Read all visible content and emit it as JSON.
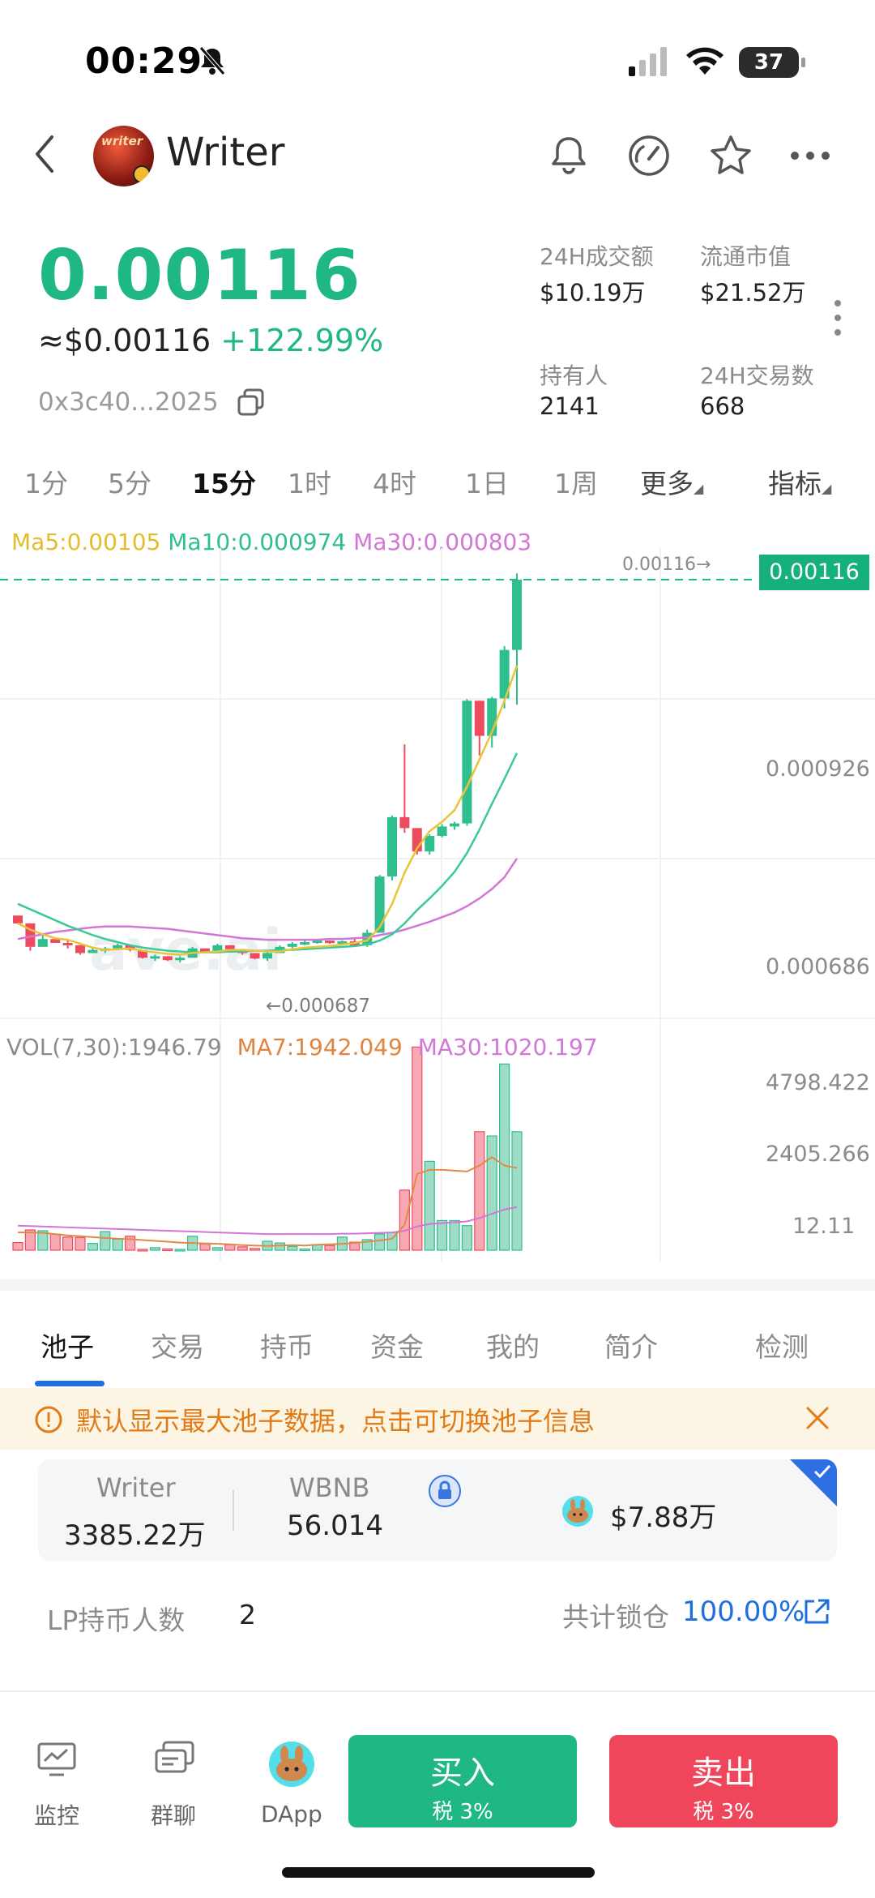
{
  "status": {
    "time": "00:29",
    "battery": "37"
  },
  "header": {
    "title": "Writer",
    "avatar_text": "writer"
  },
  "price": {
    "main": "0.00116",
    "usd": "≈$0.00116",
    "change": "+122.99%",
    "address": "0x3c40...2025"
  },
  "stats": [
    {
      "label": "24H成交额",
      "value": "$10.19万"
    },
    {
      "label": "流通市值",
      "value": "$21.52万"
    },
    {
      "label": "持有人",
      "value": "2141"
    },
    {
      "label": "24H交易数",
      "value": "668"
    }
  ],
  "intervals": [
    "1分",
    "5分",
    "15分",
    "1时",
    "4时",
    "1日",
    "1周",
    "更多",
    "指标"
  ],
  "chart": {
    "ma_legend": {
      "ma5": "Ma5:0.00105",
      "ma10": "Ma10:0.000974",
      "ma30": "Ma30:0.000803"
    },
    "price_tag": "0.00116",
    "last_label": "0.00116→",
    "low_label": "←0.000687",
    "y_labels": [
      "0.000926",
      "0.000686"
    ],
    "vol_legend": {
      "vol": "VOL(7,30):1946.79",
      "ma7": "MA7:1942.049",
      "ma30": "MA30:1020.197"
    },
    "vol_labels": [
      "4798.422",
      "2405.266",
      "12.11"
    ],
    "watermark": "ave.ai",
    "colors": {
      "up": "#2fbf8f",
      "down": "#ef4b5e",
      "ma5": "#e9c43a",
      "ma10": "#3cc99a",
      "ma30": "#d277d6",
      "vol_ma7": "#e08a4a"
    }
  },
  "chart_data": {
    "type": "candlestick",
    "candles": [
      {
        "o": 0.00073,
        "h": 0.00073,
        "l": 0.00072,
        "c": 0.00072
      },
      {
        "o": 0.00072,
        "h": 0.00072,
        "l": 0.000685,
        "c": 0.00069
      },
      {
        "o": 0.00069,
        "h": 0.000705,
        "l": 0.00069,
        "c": 0.0007
      },
      {
        "o": 0.0007,
        "h": 0.0007,
        "l": 0.000695,
        "c": 0.000695
      },
      {
        "o": 0.000695,
        "h": 0.000698,
        "l": 0.000688,
        "c": 0.000692
      },
      {
        "o": 0.000692,
        "h": 0.000692,
        "l": 0.00068,
        "c": 0.000682
      },
      {
        "o": 0.000682,
        "h": 0.000688,
        "l": 0.000682,
        "c": 0.000686
      },
      {
        "o": 0.000686,
        "h": 0.00069,
        "l": 0.000682,
        "c": 0.000688
      },
      {
        "o": 0.000688,
        "h": 0.000694,
        "l": 0.000688,
        "c": 0.000692
      },
      {
        "o": 0.000692,
        "h": 0.000692,
        "l": 0.000684,
        "c": 0.000686
      },
      {
        "o": 0.000686,
        "h": 0.000686,
        "l": 0.000675,
        "c": 0.000676
      },
      {
        "o": 0.000676,
        "h": 0.00068,
        "l": 0.000672,
        "c": 0.000678
      },
      {
        "o": 0.000678,
        "h": 0.000678,
        "l": 0.000672,
        "c": 0.000673
      },
      {
        "o": 0.000673,
        "h": 0.000678,
        "l": 0.00067,
        "c": 0.000676
      },
      {
        "o": 0.000676,
        "h": 0.00069,
        "l": 0.000676,
        "c": 0.000688
      },
      {
        "o": 0.000688,
        "h": 0.000688,
        "l": 0.000682,
        "c": 0.000684
      },
      {
        "o": 0.000684,
        "h": 0.000694,
        "l": 0.000684,
        "c": 0.000692
      },
      {
        "o": 0.000692,
        "h": 0.000692,
        "l": 0.000686,
        "c": 0.000687
      },
      {
        "o": 0.000687,
        "h": 0.000687,
        "l": 0.00068,
        "c": 0.000682
      },
      {
        "o": 0.000682,
        "h": 0.000682,
        "l": 0.000674,
        "c": 0.000675
      },
      {
        "o": 0.000675,
        "h": 0.000684,
        "l": 0.000672,
        "c": 0.000682
      },
      {
        "o": 0.000682,
        "h": 0.000692,
        "l": 0.000682,
        "c": 0.00069
      },
      {
        "o": 0.00069,
        "h": 0.000696,
        "l": 0.000688,
        "c": 0.000694
      },
      {
        "o": 0.000694,
        "h": 0.000698,
        "l": 0.000692,
        "c": 0.000696
      },
      {
        "o": 0.000696,
        "h": 0.0007,
        "l": 0.000694,
        "c": 0.000698
      },
      {
        "o": 0.000698,
        "h": 0.000698,
        "l": 0.000694,
        "c": 0.000695
      },
      {
        "o": 0.000695,
        "h": 0.000698,
        "l": 0.000693,
        "c": 0.000697
      },
      {
        "o": 0.000697,
        "h": 0.0007,
        "l": 0.00069,
        "c": 0.000692
      },
      {
        "o": 0.000692,
        "h": 0.000712,
        "l": 0.00069,
        "c": 0.000708
      },
      {
        "o": 0.000708,
        "h": 0.000782,
        "l": 0.000708,
        "c": 0.00078
      },
      {
        "o": 0.00078,
        "h": 0.000858,
        "l": 0.000775,
        "c": 0.000856
      },
      {
        "o": 0.000856,
        "h": 0.000949,
        "l": 0.000836,
        "c": 0.000842
      },
      {
        "o": 0.000842,
        "h": 0.000842,
        "l": 0.000808,
        "c": 0.000812
      },
      {
        "o": 0.000812,
        "h": 0.000834,
        "l": 0.000808,
        "c": 0.000832
      },
      {
        "o": 0.000832,
        "h": 0.000847,
        "l": 0.00083,
        "c": 0.000844
      },
      {
        "o": 0.000844,
        "h": 0.00085,
        "l": 0.00084,
        "c": 0.000848
      },
      {
        "o": 0.000848,
        "h": 0.001007,
        "l": 0.000845,
        "c": 0.001005
      },
      {
        "o": 0.001005,
        "h": 0.001005,
        "l": 0.000935,
        "c": 0.00096
      },
      {
        "o": 0.00096,
        "h": 0.00101,
        "l": 0.000945,
        "c": 0.001008
      },
      {
        "o": 0.001008,
        "h": 0.001075,
        "l": 0.000995,
        "c": 0.00107
      },
      {
        "o": 0.00107,
        "h": 0.001168,
        "l": 0.001,
        "c": 0.00116
      }
    ],
    "ma5": [
      0.00072,
      0.000712,
      0.000706,
      0.000701,
      0.000699,
      0.000694,
      0.000689,
      0.000686,
      0.000687,
      0.000688,
      0.000685,
      0.000683,
      0.000681,
      0.00068,
      0.000682,
      0.000683,
      0.000684,
      0.000686,
      0.000686,
      0.000685,
      0.000684,
      0.000684,
      0.000687,
      0.000689,
      0.00069,
      0.000691,
      0.000693,
      0.000695,
      0.000698,
      0.000715,
      0.000745,
      0.000785,
      0.000816,
      0.000838,
      0.00085,
      0.000865,
      0.000895,
      0.00093,
      0.000965,
      0.001005,
      0.00105
    ],
    "ma10": [
      0.000745,
      0.000738,
      0.000731,
      0.000724,
      0.000717,
      0.000711,
      0.000705,
      0.0007,
      0.000696,
      0.000692,
      0.000689,
      0.000687,
      0.000685,
      0.000684,
      0.000683,
      0.000683,
      0.000683,
      0.000684,
      0.000684,
      0.000685,
      0.000685,
      0.000686,
      0.000686,
      0.000687,
      0.000688,
      0.000689,
      0.00069,
      0.000691,
      0.000693,
      0.000698,
      0.000706,
      0.00072,
      0.000737,
      0.000752,
      0.000768,
      0.000786,
      0.00081,
      0.00084,
      0.000873,
      0.000905,
      0.000938
    ],
    "ma30": [
      0.0007,
      0.000703,
      0.000706,
      0.000709,
      0.000711,
      0.000713,
      0.000715,
      0.000716,
      0.000716,
      0.000716,
      0.000715,
      0.000714,
      0.000713,
      0.000711,
      0.000709,
      0.000707,
      0.000705,
      0.000703,
      0.000701,
      0.0007,
      0.000699,
      0.000699,
      0.000699,
      0.000699,
      0.000699,
      0.0007,
      0.0007,
      0.000701,
      0.000702,
      0.000705,
      0.000708,
      0.000712,
      0.000717,
      0.000722,
      0.000728,
      0.000734,
      0.000742,
      0.000752,
      0.000764,
      0.000779,
      0.000803
    ],
    "volume": [
      180,
      480,
      460,
      380,
      310,
      300,
      160,
      440,
      260,
      330,
      20,
      60,
      30,
      20,
      330,
      150,
      60,
      130,
      80,
      40,
      210,
      170,
      90,
      30,
      130,
      110,
      310,
      190,
      250,
      380,
      420,
      1420,
      4800,
      2100,
      700,
      700,
      580,
      2800,
      2700,
      4400,
      2800
    ],
    "vol_ma7": [
      420,
      420,
      410,
      380,
      350,
      330,
      310,
      290,
      270,
      260,
      240,
      220,
      200,
      180,
      170,
      160,
      150,
      140,
      120,
      110,
      100,
      110,
      120,
      110,
      130,
      140,
      150,
      170,
      200,
      230,
      270,
      600,
      1800,
      1900,
      1900,
      1880,
      1860,
      2000,
      2200,
      2000,
      1942
    ],
    "vol_ma30": [
      580,
      570,
      560,
      550,
      540,
      530,
      520,
      510,
      500,
      490,
      480,
      470,
      460,
      450,
      440,
      430,
      420,
      410,
      400,
      390,
      380,
      380,
      380,
      380,
      380,
      380,
      390,
      390,
      400,
      410,
      420,
      460,
      560,
      620,
      640,
      660,
      680,
      760,
      860,
      960,
      1020
    ],
    "ylim": [
      0.00064,
      0.00119
    ],
    "vol_ylim": [
      0,
      5000
    ]
  },
  "tabs": [
    "池子",
    "交易",
    "持币",
    "资金",
    "我的",
    "简介",
    "检测"
  ],
  "notice": {
    "text": "默认显示最大池子数据，点击可切换池子信息"
  },
  "pool": {
    "token_label": "Writer",
    "token_value": "3385.22万",
    "pair_label": "WBNB",
    "pair_value": "56.014",
    "liquidity": "$7.88万"
  },
  "lp": {
    "label": "LP持币人数",
    "value": "2",
    "lock_label": "共计锁仓",
    "lock_value": "100.00%"
  },
  "nav": {
    "monitor": "监控",
    "group": "群聊",
    "dapp": "DApp",
    "buy": "买入",
    "buy_tax": "税 3%",
    "sell": "卖出",
    "sell_tax": "税 3%"
  }
}
